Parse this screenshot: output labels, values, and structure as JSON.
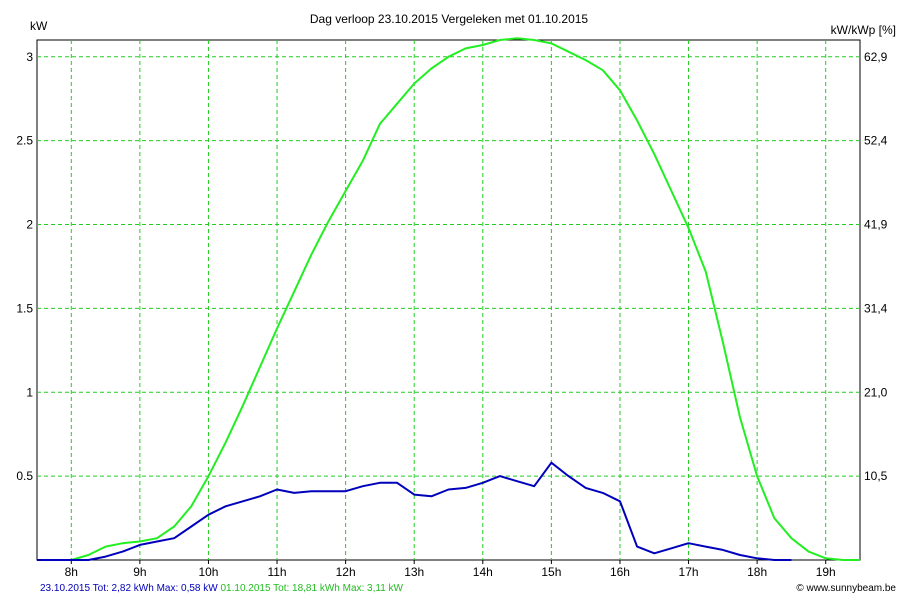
{
  "chart_data": {
    "type": "line",
    "title": "Dag  verloop 23.10.2015   Vergeleken met 01.10.2015",
    "ylabel_left": "kW",
    "ylabel_right": "kW/kWp [%]",
    "ylim": [
      0,
      3.1
    ],
    "y_ticks_left": [
      0.5,
      1,
      1.5,
      2,
      2.5,
      3
    ],
    "y_tick_labels_left": [
      "0.5",
      "1",
      "1.5",
      "2",
      "2.5",
      "3"
    ],
    "y_tick_labels_right": [
      "10,5",
      "21,0",
      "31,4",
      "41,9",
      "52,4",
      "62,9"
    ],
    "xlim": [
      7.5,
      19.5
    ],
    "x_ticks": [
      8,
      9,
      10,
      11,
      12,
      13,
      14,
      15,
      16,
      17,
      18,
      19
    ],
    "x_tick_labels": [
      "8h",
      "9h",
      "10h",
      "11h",
      "12h",
      "13h",
      "14h",
      "15h",
      "16h",
      "17h",
      "18h",
      "19h"
    ],
    "grid": true,
    "series": [
      {
        "name": "01.10.2015",
        "color": "#22ee22",
        "x": [
          7.5,
          8.0,
          8.25,
          8.5,
          8.75,
          9.0,
          9.25,
          9.5,
          9.75,
          10.0,
          10.25,
          10.5,
          10.75,
          11.0,
          11.25,
          11.5,
          11.75,
          12.0,
          12.25,
          12.5,
          12.75,
          13.0,
          13.25,
          13.5,
          13.75,
          14.0,
          14.25,
          14.5,
          14.75,
          15.0,
          15.25,
          15.5,
          15.75,
          16.0,
          16.25,
          16.5,
          16.75,
          17.0,
          17.25,
          17.5,
          17.75,
          18.0,
          18.25,
          18.5,
          18.75,
          19.0,
          19.25,
          19.5
        ],
        "values": [
          0,
          0,
          0.03,
          0.08,
          0.1,
          0.11,
          0.13,
          0.2,
          0.32,
          0.5,
          0.7,
          0.92,
          1.15,
          1.38,
          1.6,
          1.82,
          2.02,
          2.2,
          2.38,
          2.6,
          2.72,
          2.84,
          2.93,
          3.0,
          3.05,
          3.07,
          3.1,
          3.11,
          3.1,
          3.08,
          3.03,
          2.98,
          2.92,
          2.8,
          2.62,
          2.42,
          2.2,
          1.98,
          1.72,
          1.3,
          0.85,
          0.5,
          0.25,
          0.13,
          0.05,
          0.01,
          0,
          0
        ]
      },
      {
        "name": "23.10.2015",
        "color": "#0000bb",
        "x": [
          7.5,
          8.25,
          8.5,
          8.75,
          9.0,
          9.25,
          9.5,
          9.75,
          10.0,
          10.25,
          10.5,
          10.75,
          11.0,
          11.25,
          11.5,
          11.75,
          12.0,
          12.25,
          12.5,
          12.75,
          13.0,
          13.25,
          13.5,
          13.75,
          14.0,
          14.25,
          14.5,
          14.75,
          15.0,
          15.25,
          15.5,
          15.75,
          16.0,
          16.25,
          16.5,
          16.75,
          17.0,
          17.25,
          17.5,
          17.75,
          18.0,
          18.25,
          18.5
        ],
        "values": [
          0,
          0,
          0.02,
          0.05,
          0.09,
          0.11,
          0.13,
          0.2,
          0.27,
          0.32,
          0.35,
          0.38,
          0.42,
          0.4,
          0.41,
          0.41,
          0.41,
          0.44,
          0.46,
          0.46,
          0.39,
          0.38,
          0.42,
          0.43,
          0.46,
          0.5,
          0.47,
          0.44,
          0.58,
          0.5,
          0.43,
          0.4,
          0.35,
          0.08,
          0.04,
          0.07,
          0.1,
          0.08,
          0.06,
          0.03,
          0.01,
          0,
          0
        ]
      }
    ],
    "footer": {
      "blue_summary": "23.10.2015 Tot: 2,82 kWh Max: 0,58 kW",
      "green_summary": "01.10.2015 Tot: 18,81 kWh Max: 3,11 kW"
    }
  },
  "copyright": "© www.sunnybeam.be"
}
